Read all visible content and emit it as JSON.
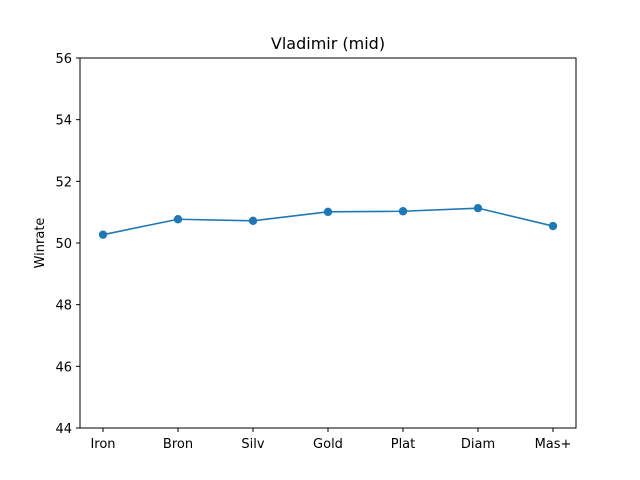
{
  "chart_data": {
    "type": "line",
    "title": "Vladimir (mid)",
    "xlabel": "",
    "ylabel": "Winrate",
    "categories": [
      "Iron",
      "Bron",
      "Silv",
      "Gold",
      "Plat",
      "Diam",
      "Mas+"
    ],
    "series": [
      {
        "values": [
          50.27,
          50.77,
          50.72,
          51.01,
          51.03,
          51.13,
          50.55
        ],
        "color": "#1f77b4",
        "marker": "circle"
      }
    ],
    "ylim": [
      44,
      56
    ],
    "yticks": [
      44,
      46,
      48,
      50,
      52,
      54,
      56
    ],
    "grid": false,
    "legend": "none"
  }
}
